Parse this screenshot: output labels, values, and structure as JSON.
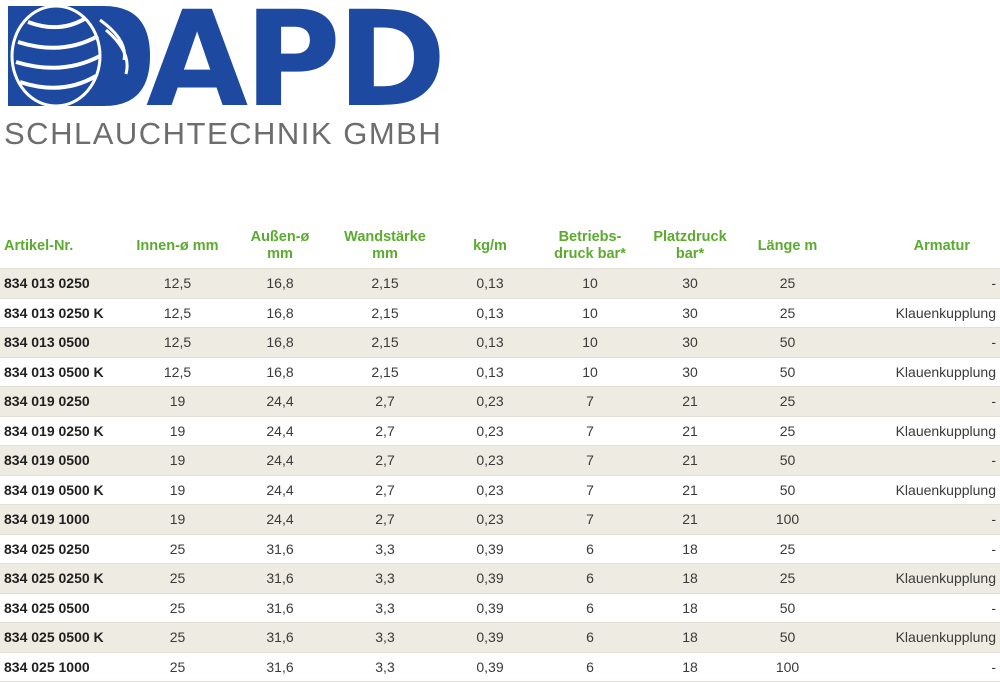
{
  "logo": {
    "word": "APD",
    "subtitle": "SCHLAUCHTECHNIK GMBH",
    "brand_color": "#1d4aa0"
  },
  "table": {
    "header_color": "#5aab2e",
    "headers": [
      "Artikel-Nr.",
      "Innen-ø mm",
      "Außen-ø\nmm",
      "Wandstärke\nmm",
      "kg/m",
      "Betriebs-\ndruck bar*",
      "Platzdruck\nbar*",
      "Länge m",
      "Armatur"
    ],
    "rows": [
      [
        "834 013 0250",
        "12,5",
        "16,8",
        "2,15",
        "0,13",
        "10",
        "30",
        "25",
        "-"
      ],
      [
        "834 013 0250 K",
        "12,5",
        "16,8",
        "2,15",
        "0,13",
        "10",
        "30",
        "25",
        "Klauenkupplung"
      ],
      [
        "834 013 0500",
        "12,5",
        "16,8",
        "2,15",
        "0,13",
        "10",
        "30",
        "50",
        "-"
      ],
      [
        "834 013 0500 K",
        "12,5",
        "16,8",
        "2,15",
        "0,13",
        "10",
        "30",
        "50",
        "Klauenkupplung"
      ],
      [
        "834 019 0250",
        "19",
        "24,4",
        "2,7",
        "0,23",
        "7",
        "21",
        "25",
        "-"
      ],
      [
        "834 019 0250 K",
        "19",
        "24,4",
        "2,7",
        "0,23",
        "7",
        "21",
        "25",
        "Klauenkupplung"
      ],
      [
        "834 019 0500",
        "19",
        "24,4",
        "2,7",
        "0,23",
        "7",
        "21",
        "50",
        "-"
      ],
      [
        "834 019 0500 K",
        "19",
        "24,4",
        "2,7",
        "0,23",
        "7",
        "21",
        "50",
        "Klauenkupplung"
      ],
      [
        "834 019 1000",
        "19",
        "24,4",
        "2,7",
        "0,23",
        "7",
        "21",
        "100",
        "-"
      ],
      [
        "834 025 0250",
        "25",
        "31,6",
        "3,3",
        "0,39",
        "6",
        "18",
        "25",
        "-"
      ],
      [
        "834 025 0250 K",
        "25",
        "31,6",
        "3,3",
        "0,39",
        "6",
        "18",
        "25",
        "Klauenkupplung"
      ],
      [
        "834 025 0500",
        "25",
        "31,6",
        "3,3",
        "0,39",
        "6",
        "18",
        "50",
        "-"
      ],
      [
        "834 025 0500 K",
        "25",
        "31,6",
        "3,3",
        "0,39",
        "6",
        "18",
        "50",
        "Klauenkupplung"
      ],
      [
        "834 025 1000",
        "25",
        "31,6",
        "3,3",
        "0,39",
        "6",
        "18",
        "100",
        "-"
      ]
    ]
  }
}
